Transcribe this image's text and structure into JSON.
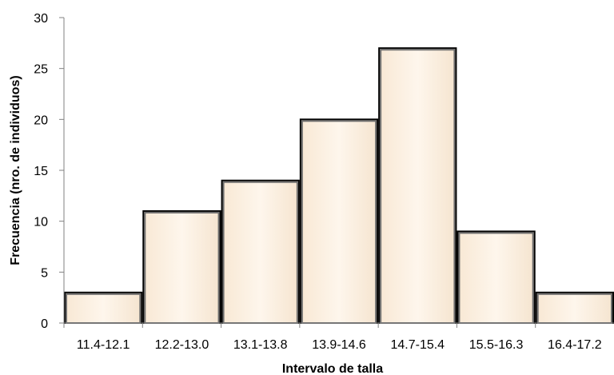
{
  "chart_data": {
    "type": "bar",
    "categories": [
      "11.4-12.1",
      "12.2-13.0",
      "13.1-13.8",
      "13.9-14.6",
      "14.7-15.4",
      "15.5-16.3",
      "16.4-17.2"
    ],
    "values": [
      3,
      11,
      14,
      20,
      27,
      9,
      3
    ],
    "xlabel": "Intervalo de talla",
    "ylabel": "Frecuencia (nro. de individuos)",
    "ylim": [
      0,
      30
    ],
    "yticks": [
      0,
      5,
      10,
      15,
      20,
      25,
      30
    ],
    "grid": false,
    "legend": "none",
    "bar_fill": "#fdf1e2",
    "bar_edge": "#000000",
    "axis_color": "#808080"
  }
}
